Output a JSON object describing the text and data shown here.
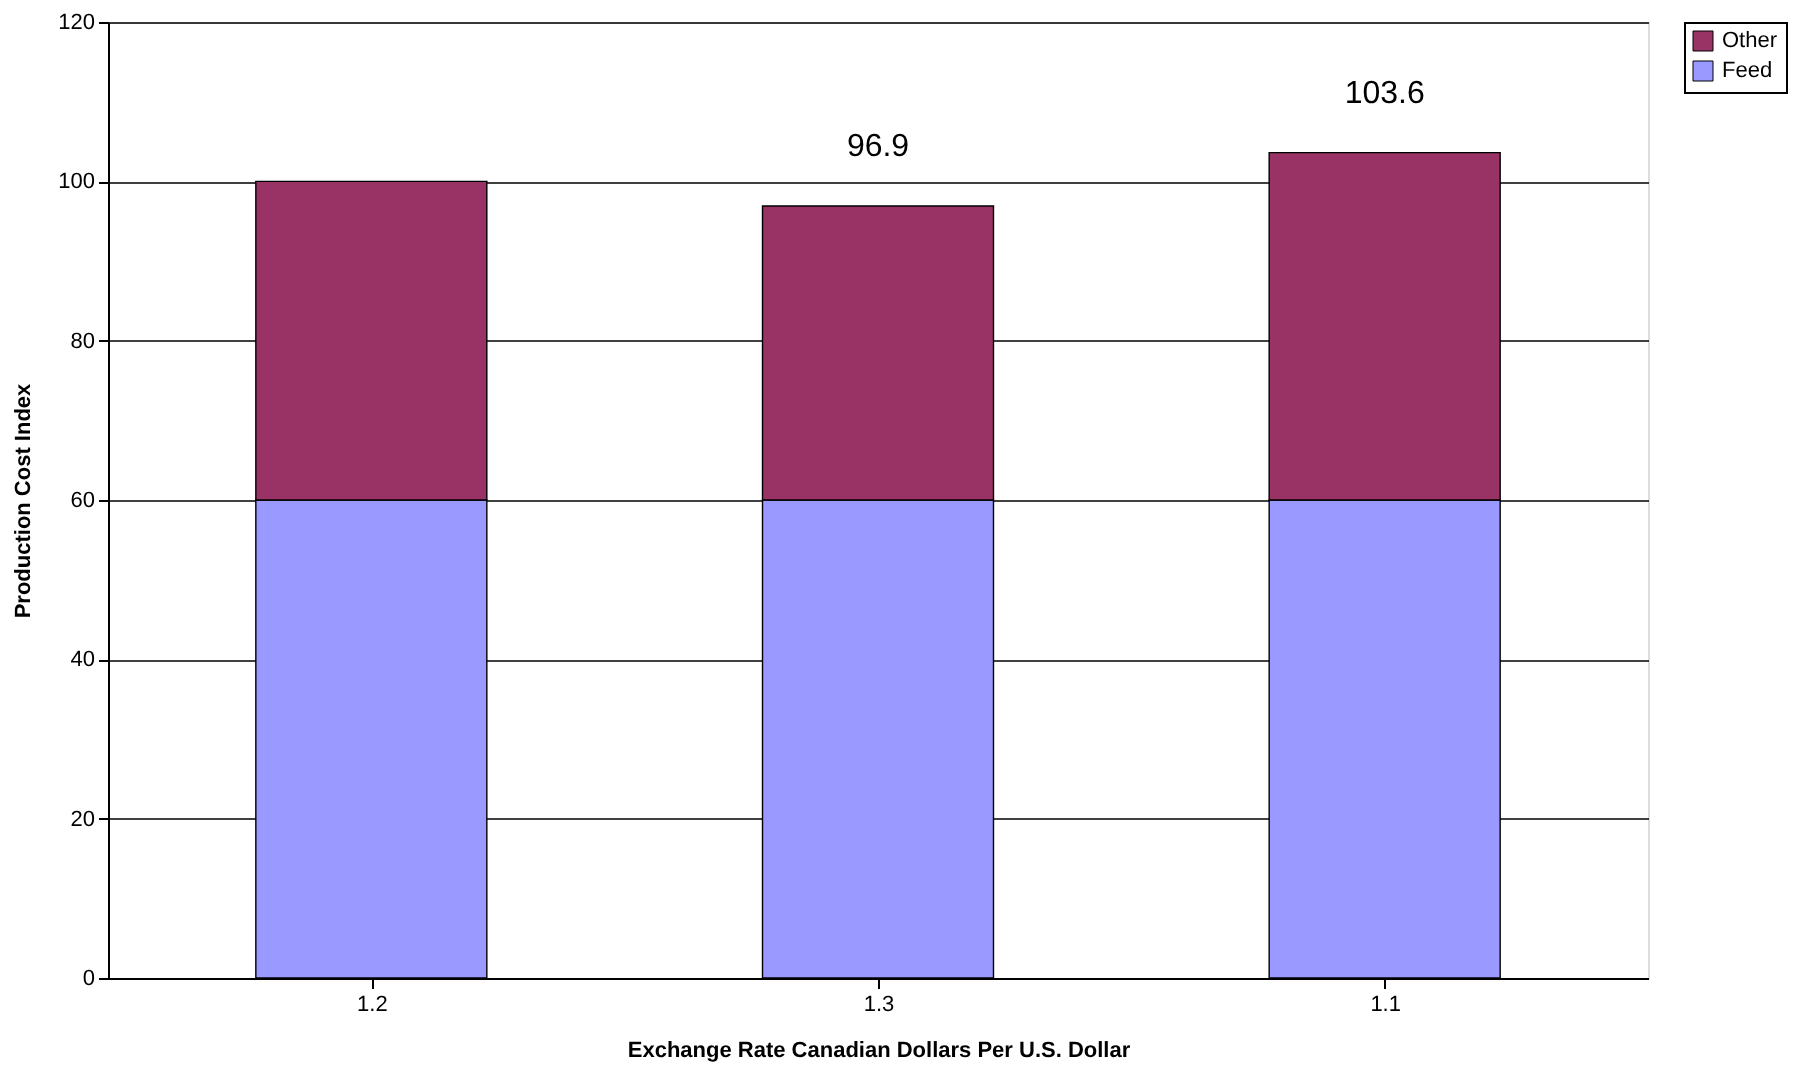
{
  "chart_data": {
    "type": "bar",
    "stacked": true,
    "xlabel": "Exchange Rate Canadian Dollars Per U.S. Dollar",
    "ylabel": "Production Cost Index",
    "categories": [
      "1.2",
      "1.3",
      "1.1"
    ],
    "series": [
      {
        "name": "Feed",
        "color": "#9999ff",
        "values": [
          60,
          60,
          60
        ]
      },
      {
        "name": "Other",
        "color": "#993366",
        "values": [
          40,
          36.9,
          43.6
        ]
      }
    ],
    "totals": [
      null,
      "96.9",
      "103.6"
    ],
    "ylim": [
      0,
      120
    ],
    "yticks": [
      0,
      20,
      40,
      60,
      80,
      100,
      120
    ],
    "grid": "y",
    "legend": "right"
  }
}
